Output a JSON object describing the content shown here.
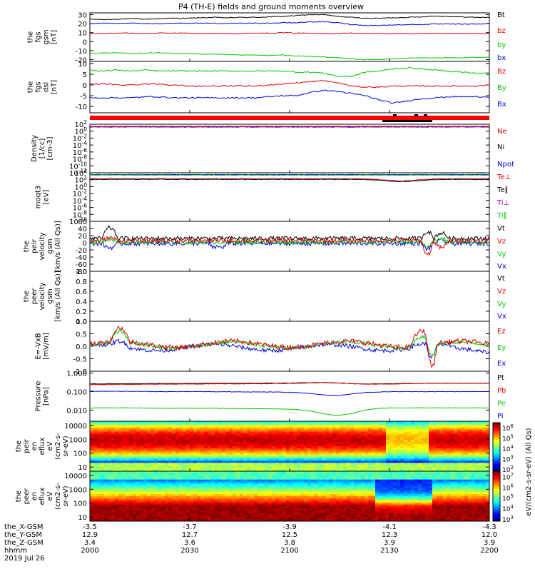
{
  "title": "P4 (TH-E) fields and ground moments overview",
  "chart_data": [
    {
      "id": "p1",
      "type": "line",
      "ylabel": [
        "the",
        "fgs",
        "gsm",
        "[nT]"
      ],
      "yticks": [
        -20,
        -10,
        0,
        10,
        20,
        30
      ],
      "ylim": [
        -22,
        32
      ],
      "legend": [
        {
          "label": "Bt",
          "color": "#000000"
        },
        {
          "label": "bz",
          "color": "#e00000"
        },
        {
          "label": "by",
          "color": "#00c800"
        },
        {
          "label": "bx",
          "color": "#0000e0"
        }
      ],
      "series": [
        {
          "name": "Bt",
          "color": "#000000",
          "values": [
            25,
            24.5,
            25,
            25.5,
            25,
            25.5,
            26,
            26,
            26.5,
            27,
            26.5,
            27,
            27,
            27.5,
            28,
            29,
            30,
            30,
            28,
            27,
            26,
            26,
            26.5,
            27,
            27.5,
            28.5,
            28,
            27.5,
            27,
            27
          ]
        },
        {
          "name": "bz",
          "color": "#e00000",
          "values": [
            9,
            9,
            9.5,
            9.5,
            9,
            9.5,
            9.5,
            9.5,
            9,
            9,
            9,
            9,
            9.5,
            9.5,
            10,
            9.5,
            9.5,
            9,
            9,
            9.5,
            9,
            9,
            9,
            9,
            9,
            9,
            9,
            9,
            9,
            9
          ]
        },
        {
          "name": "by",
          "color": "#00c800",
          "values": [
            -13,
            -12.5,
            -12.5,
            -13,
            -13,
            -12.5,
            -13,
            -13,
            -14,
            -14,
            -14.5,
            -15,
            -15,
            -15.5,
            -15,
            -16,
            -16.5,
            -17,
            -18,
            -19,
            -20,
            -20,
            -19,
            -18.5,
            -18,
            -18,
            -18,
            -18,
            -17.5,
            -17
          ]
        },
        {
          "name": "bx",
          "color": "#0000e0",
          "values": [
            20,
            20.5,
            20,
            20.5,
            20,
            20,
            20.5,
            20.5,
            20.5,
            20.5,
            20,
            20.5,
            20.5,
            20.5,
            21,
            21,
            22,
            22,
            21,
            19,
            18,
            18,
            18.5,
            19,
            19,
            19.5,
            19.5,
            19.5,
            19.5,
            20
          ]
        }
      ]
    },
    {
      "id": "p2",
      "type": "line",
      "ylabel": [
        "the",
        "fgs",
        "dsl",
        "[nT]"
      ],
      "yticks": [
        -10,
        -5,
        0,
        5,
        10
      ],
      "ylim": [
        -13,
        11
      ],
      "legend": [
        {
          "label": "Bz",
          "color": "#e00000"
        },
        {
          "label": "By",
          "color": "#00c800"
        },
        {
          "label": "Bx",
          "color": "#0000e0"
        }
      ],
      "series": [
        {
          "name": "Bz",
          "color": "#e00000",
          "values": [
            0.5,
            0.5,
            0,
            0,
            0.5,
            0.5,
            0,
            -0.5,
            -0.5,
            -0.5,
            -0.5,
            -0.5,
            -0.5,
            0,
            0.5,
            1,
            1.5,
            2,
            1,
            -0.5,
            -1,
            -1,
            -0.5,
            -0.5,
            -0.5,
            -0.5,
            -0.5,
            -0.5,
            -0.5,
            0
          ]
        },
        {
          "name": "By",
          "color": "#00c800",
          "values": [
            7,
            6.5,
            7,
            6.5,
            7,
            6.5,
            6.5,
            6.5,
            6.5,
            6.5,
            6.5,
            6.5,
            6.5,
            6.5,
            6.5,
            6,
            6,
            5.5,
            4,
            4,
            6,
            6.5,
            7.5,
            8,
            7.5,
            7,
            6.5,
            6,
            5.5,
            5.5
          ]
        },
        {
          "name": "Bx",
          "color": "#0000e0",
          "values": [
            -6,
            -6,
            -6,
            -6,
            -5.5,
            -5.5,
            -6,
            -6,
            -6,
            -6,
            -6,
            -6,
            -6,
            -5.5,
            -5,
            -5,
            -3.5,
            -2.5,
            -3,
            -4,
            -5,
            -7,
            -8.5,
            -7.5,
            -6.5,
            -6,
            -5.5,
            -5.5,
            -5.5,
            -5.5
          ]
        }
      ]
    },
    {
      "id": "p3",
      "type": "line",
      "ylabel": [
        "Density",
        "[1/cc]",
        "[cm-3]"
      ],
      "yticks": [
        "10^2",
        "10^0",
        "10^-2",
        "10^-4",
        "10^-6",
        "10^-8",
        "10^-10",
        "10^-12"
      ],
      "log_range": [
        -12,
        2
      ],
      "legend": [
        {
          "label": "Ne",
          "color": "#e00000"
        },
        {
          "label": "Ni",
          "color": "#000000"
        },
        {
          "label": "Npot",
          "color": "#0000e0"
        }
      ]
    },
    {
      "id": "p4",
      "type": "line",
      "ylabel": [
        "moqt3",
        "[eV]"
      ],
      "yticks": [
        "10^4",
        "10^2",
        "10^0",
        "10^-2",
        "10^-4",
        "10^-6",
        "10^-8",
        "10^-10"
      ],
      "log_range": [
        -10,
        4
      ],
      "legend": [
        {
          "label": "Te⊥",
          "color": "#e00000"
        },
        {
          "label": "Te∥",
          "color": "#000000"
        },
        {
          "label": "Ti⊥",
          "color": "#a000c8"
        },
        {
          "label": "Ti∥",
          "color": "#00c800"
        }
      ]
    },
    {
      "id": "p5",
      "type": "line",
      "ylabel": [
        "the",
        "peir",
        "velocity",
        "gsm",
        "[km/s (All Qs)]"
      ],
      "yticks": [
        -80,
        -60,
        -40,
        -20,
        0,
        20,
        40,
        60
      ],
      "ylim": [
        -80,
        60
      ],
      "legend": [
        {
          "label": "Vt",
          "color": "#000000"
        },
        {
          "label": "Vz",
          "color": "#e00000"
        },
        {
          "label": "Vy",
          "color": "#00c800"
        },
        {
          "label": "Vx",
          "color": "#0000e0"
        }
      ]
    },
    {
      "id": "p6",
      "type": "line",
      "ylabel": [
        "the",
        "peer",
        "velocity",
        "gsm",
        "[km/s (All Qs)]"
      ],
      "yticks": [
        0.0,
        0.2,
        0.4,
        0.6,
        0.8,
        1.0
      ],
      "ylim": [
        0,
        1
      ],
      "legend": [
        {
          "label": "Vt",
          "color": "#000000"
        },
        {
          "label": "Vz",
          "color": "#e00000"
        },
        {
          "label": "Vy",
          "color": "#00c800"
        },
        {
          "label": "Vx",
          "color": "#0000e0"
        }
      ]
    },
    {
      "id": "p7",
      "type": "line",
      "ylabel": [
        "E=-VxB",
        "[mV/m]"
      ],
      "yticks": [
        -1.0,
        -0.5,
        0.0,
        0.5,
        1.0
      ],
      "ylim": [
        -1,
        1
      ],
      "legend": [
        {
          "label": "Ez",
          "color": "#e00000"
        },
        {
          "label": "Ey",
          "color": "#00c800"
        },
        {
          "label": "Ex",
          "color": "#0000e0"
        }
      ]
    },
    {
      "id": "p8",
      "type": "line",
      "ylabel": [
        "Pressure",
        "[nPa]"
      ],
      "yticks": [
        "1.000",
        "0.100",
        "0.010"
      ],
      "log_range": [
        -2.6,
        0.1
      ],
      "legend": [
        {
          "label": "Pt",
          "color": "#000000"
        },
        {
          "label": "Pb",
          "color": "#e00000"
        },
        {
          "label": "Pe",
          "color": "#00c800"
        },
        {
          "label": "Pi",
          "color": "#0000e0"
        }
      ],
      "series": [
        {
          "name": "Pt",
          "color": "#000000",
          "log_values": [
            -0.58,
            -0.58,
            -0.57,
            -0.57,
            -0.57,
            -0.56,
            -0.56,
            -0.56,
            -0.56,
            -0.55,
            -0.55,
            -0.55,
            -0.55,
            -0.54,
            -0.54,
            -0.53,
            -0.52,
            -0.51,
            -0.53,
            -0.57,
            -0.58,
            -0.58,
            -0.57,
            -0.56,
            -0.55,
            -0.55,
            -0.55,
            -0.55,
            -0.55,
            -0.55
          ]
        },
        {
          "name": "Pb",
          "color": "#e00000",
          "log_values": [
            -0.62,
            -0.62,
            -0.61,
            -0.61,
            -0.6,
            -0.6,
            -0.6,
            -0.59,
            -0.59,
            -0.58,
            -0.58,
            -0.58,
            -0.58,
            -0.57,
            -0.56,
            -0.55,
            -0.53,
            -0.52,
            -0.54,
            -0.57,
            -0.6,
            -0.6,
            -0.59,
            -0.57,
            -0.56,
            -0.55,
            -0.55,
            -0.55,
            -0.55,
            -0.55
          ]
        },
        {
          "name": "Pe",
          "color": "#00c800",
          "log_values": [
            -1.88,
            -1.88,
            -1.88,
            -1.88,
            -1.89,
            -1.9,
            -1.9,
            -1.9,
            -1.9,
            -1.9,
            -1.91,
            -1.92,
            -1.92,
            -1.93,
            -1.94,
            -1.96,
            -2.05,
            -2.2,
            -2.3,
            -2.18,
            -2.0,
            -1.9,
            -1.88,
            -1.88,
            -1.88,
            -1.88,
            -1.88,
            -1.88,
            -1.88,
            -1.88
          ]
        },
        {
          "name": "Pi",
          "color": "#0000e0",
          "log_values": [
            -0.98,
            -0.98,
            -0.98,
            -0.99,
            -0.99,
            -1.0,
            -1.0,
            -1.0,
            -1.0,
            -1.01,
            -1.01,
            -1.01,
            -1.02,
            -1.02,
            -1.03,
            -1.05,
            -1.1,
            -1.18,
            -1.22,
            -1.12,
            -1.05,
            -1.02,
            -1.0,
            -1.0,
            -1.0,
            -1.0,
            -1.0,
            -1.0,
            -1.0,
            -1.0
          ]
        }
      ]
    },
    {
      "id": "p9",
      "type": "heatmap",
      "ylabel": [
        "the",
        "peir",
        "en",
        "eflux",
        "eV",
        "(cm2-s-",
        "sr-eV)"
      ],
      "yticks": [
        "10000",
        "1000",
        "100",
        "10"
      ],
      "ylog_range": [
        0.7,
        4.3
      ]
    },
    {
      "id": "p10",
      "type": "heatmap",
      "ylabel": [
        "the",
        "peer",
        "en",
        "eflux",
        "eV",
        "(cm2-s-",
        "sr-eV)"
      ],
      "yticks": [
        "10000",
        "1000",
        "100",
        "10"
      ],
      "ylog_range": [
        0.7,
        4.3
      ]
    }
  ],
  "colorbars": [
    {
      "id": "cb1",
      "label": "eV/(cm2-s-sr-eV) (All Qs)",
      "ticks": [
        "10^6",
        "10^5",
        "10^4",
        "10^3",
        "10^2"
      ],
      "log_range": [
        1.8,
        6.5
      ]
    },
    {
      "id": "cb2",
      "label": "eV/(cm2-s-sr-eV)",
      "ticks": [
        "10^7",
        "10^6",
        "10^5",
        "10^4",
        "10^3"
      ],
      "log_range": [
        2.8,
        7.5
      ]
    }
  ],
  "xaxis": {
    "labels": [
      "the_X-GSM",
      "the_Y-GSM",
      "the_Z-GSM",
      "hhmm"
    ],
    "date": "2019 Jul 26",
    "ticks": [
      {
        "x": "-3.5",
        "y": "12.9",
        "z": "3.4",
        "t": "2000"
      },
      {
        "x": "-3.7",
        "y": "12.7",
        "z": "3.6",
        "t": "2030"
      },
      {
        "x": "-3.9",
        "y": "12.5",
        "z": "3.8",
        "t": "2100"
      },
      {
        "x": "-4.1",
        "y": "12.3",
        "z": "3.9",
        "t": "2130"
      },
      {
        "x": "-4.3",
        "y": "12.0",
        "z": "3.9",
        "t": "2200"
      }
    ]
  }
}
